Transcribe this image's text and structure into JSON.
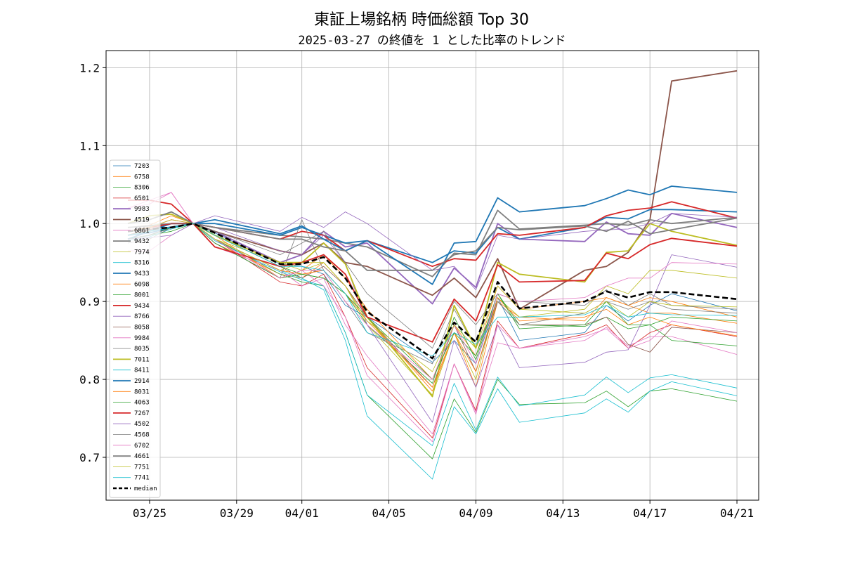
{
  "chart_data": {
    "type": "line",
    "title": "東証上場銘柄 時価総額 Top 30",
    "subtitle": "2025-03-27 の終値を 1 とした比率のトレンド",
    "xlabel": "",
    "ylabel": "",
    "xlim": [
      "2025-03-23",
      "2025-04-22"
    ],
    "ylim": [
      0.645,
      1.222
    ],
    "x_ticks": [
      {
        "date": "2025-03-25",
        "label": "03/25"
      },
      {
        "date": "2025-03-29",
        "label": "03/29"
      },
      {
        "date": "2025-04-01",
        "label": "04/01"
      },
      {
        "date": "2025-04-05",
        "label": "04/05"
      },
      {
        "date": "2025-04-09",
        "label": "04/09"
      },
      {
        "date": "2025-04-13",
        "label": "04/13"
      },
      {
        "date": "2025-04-17",
        "label": "04/17"
      },
      {
        "date": "2025-04-21",
        "label": "04/21"
      }
    ],
    "y_ticks": [
      {
        "value": 0.7,
        "label": "0.7"
      },
      {
        "value": 0.8,
        "label": "0.8"
      },
      {
        "value": 0.9,
        "label": "0.9"
      },
      {
        "value": 1.0,
        "label": "1.0"
      },
      {
        "value": 1.1,
        "label": "1.1"
      },
      {
        "value": 1.2,
        "label": "1.2"
      }
    ],
    "grid": true,
    "legend_position": "left",
    "x": [
      "2025-03-24",
      "2025-03-25",
      "2025-03-26",
      "2025-03-27",
      "2025-03-28",
      "2025-03-31",
      "2025-04-01",
      "2025-04-02",
      "2025-04-03",
      "2025-04-04",
      "2025-04-07",
      "2025-04-08",
      "2025-04-09",
      "2025-04-10",
      "2025-04-11",
      "2025-04-14",
      "2025-04-15",
      "2025-04-16",
      "2025-04-17",
      "2025-04-18",
      "2025-04-21"
    ],
    "series": [
      {
        "name": "7203",
        "color": "#1f77b4",
        "width": 0.8,
        "values": [
          0.985,
          0.992,
          0.996,
          1,
          0.988,
          0.948,
          0.945,
          0.935,
          0.895,
          0.88,
          0.822,
          0.85,
          0.82,
          0.905,
          0.85,
          0.86,
          0.895,
          0.875,
          0.895,
          0.91,
          0.888
        ]
      },
      {
        "name": "6758",
        "color": "#ff7f0e",
        "width": 0.8,
        "values": [
          0.995,
          0.998,
          1.01,
          1,
          0.975,
          0.935,
          0.93,
          0.95,
          0.92,
          0.88,
          0.785,
          0.86,
          0.79,
          0.9,
          0.88,
          0.875,
          0.905,
          0.895,
          0.885,
          0.885,
          0.872
        ]
      },
      {
        "name": "8306",
        "color": "#2ca02c",
        "width": 0.8,
        "values": [
          0.98,
          0.985,
          0.99,
          1,
          0.98,
          0.935,
          0.925,
          0.92,
          0.86,
          0.78,
          0.698,
          0.775,
          0.732,
          0.8,
          0.768,
          0.77,
          0.785,
          0.765,
          0.785,
          0.788,
          0.772
        ]
      },
      {
        "name": "6501",
        "color": "#d62728",
        "width": 0.8,
        "values": [
          0.99,
          0.995,
          1.005,
          1,
          0.98,
          0.925,
          0.92,
          0.935,
          0.88,
          0.815,
          0.725,
          0.82,
          0.76,
          0.875,
          0.84,
          0.858,
          0.87,
          0.84,
          0.86,
          0.87,
          0.855
        ]
      },
      {
        "name": "9983",
        "color": "#9467bd",
        "width": 1.8,
        "values": [
          0.98,
          0.985,
          0.995,
          1,
          0.99,
          0.95,
          0.96,
          0.99,
          0.97,
          0.975,
          0.897,
          0.943,
          0.918,
          1.0,
          0.98,
          0.977,
          1.002,
          0.987,
          0.985,
          1.013,
          0.995
        ]
      },
      {
        "name": "4519",
        "color": "#8c564b",
        "width": 1.8,
        "values": [
          0.985,
          0.992,
          1.0,
          1,
          0.99,
          0.965,
          0.96,
          0.975,
          0.95,
          0.945,
          0.908,
          0.93,
          0.905,
          0.955,
          0.89,
          0.94,
          0.945,
          0.963,
          1.005,
          1.183,
          1.196
        ]
      },
      {
        "name": "6861",
        "color": "#e377c2",
        "width": 0.8,
        "values": [
          0.965,
          0.965,
          0.985,
          1,
          0.97,
          0.94,
          0.92,
          0.93,
          0.87,
          0.83,
          0.73,
          0.82,
          0.758,
          0.847,
          0.84,
          0.85,
          0.867,
          0.843,
          0.855,
          0.855,
          0.832
        ]
      },
      {
        "name": "9432",
        "color": "#7f7f7f",
        "width": 1.8,
        "values": [
          0.995,
          0.997,
          1.0,
          1,
          0.995,
          0.985,
          0.983,
          0.98,
          0.975,
          0.97,
          0.932,
          0.962,
          0.96,
          1.017,
          0.993,
          0.998,
          1.0,
          0.998,
          1.005,
          1.0,
          1.008
        ]
      },
      {
        "name": "7974",
        "color": "#bcbd22",
        "width": 0.8,
        "values": [
          0.985,
          0.99,
          1.0,
          1,
          0.98,
          0.95,
          0.94,
          0.95,
          0.92,
          0.87,
          0.78,
          0.86,
          0.8,
          0.905,
          0.88,
          0.89,
          0.92,
          0.91,
          0.94,
          0.94,
          0.93
        ]
      },
      {
        "name": "8316",
        "color": "#17becf",
        "width": 0.8,
        "values": [
          0.978,
          0.983,
          0.993,
          1,
          0.978,
          0.938,
          0.928,
          0.92,
          0.86,
          0.78,
          0.715,
          0.795,
          0.735,
          0.803,
          0.766,
          0.78,
          0.803,
          0.783,
          0.802,
          0.806,
          0.789
        ]
      },
      {
        "name": "9433",
        "color": "#1f77b4",
        "width": 1.8,
        "values": [
          0.98,
          0.99,
          1.0,
          1,
          1.0,
          0.985,
          0.995,
          0.985,
          0.975,
          0.978,
          0.95,
          0.965,
          0.962,
          0.995,
          0.98,
          0.995,
          1.008,
          1.006,
          1.018,
          1.018,
          1.015
        ]
      },
      {
        "name": "6098",
        "color": "#ff7f0e",
        "width": 0.8,
        "values": [
          0.99,
          0.995,
          1.0,
          1,
          0.985,
          0.93,
          0.94,
          0.96,
          0.93,
          0.89,
          0.8,
          0.87,
          0.83,
          0.92,
          0.89,
          0.9,
          0.905,
          0.895,
          0.905,
          0.9,
          0.88
        ]
      },
      {
        "name": "8001",
        "color": "#2ca02c",
        "width": 0.8,
        "values": [
          0.985,
          0.99,
          0.995,
          1,
          0.985,
          0.945,
          0.935,
          0.93,
          0.91,
          0.87,
          0.795,
          0.88,
          0.825,
          0.91,
          0.87,
          0.868,
          0.88,
          0.865,
          0.87,
          0.85,
          0.843
        ]
      },
      {
        "name": "9434",
        "color": "#d62728",
        "width": 1.8,
        "values": [
          1.03,
          1.03,
          1.025,
          1,
          0.995,
          0.98,
          0.99,
          0.985,
          0.965,
          0.978,
          0.945,
          0.955,
          0.953,
          0.987,
          0.985,
          0.995,
          1.01,
          1.017,
          1.02,
          1.028,
          1.007
        ]
      },
      {
        "name": "8766",
        "color": "#9467bd",
        "width": 0.8,
        "values": [
          0.985,
          0.988,
          0.995,
          1,
          0.995,
          0.965,
          0.96,
          0.985,
          0.95,
          0.87,
          0.745,
          0.85,
          0.79,
          0.87,
          0.815,
          0.822,
          0.835,
          0.838,
          0.895,
          0.96,
          0.944
        ]
      },
      {
        "name": "8058",
        "color": "#8c564b",
        "width": 0.8,
        "values": [
          0.99,
          0.995,
          1.0,
          1,
          0.985,
          0.945,
          0.93,
          0.945,
          0.92,
          0.88,
          0.79,
          0.87,
          0.81,
          0.9,
          0.87,
          0.87,
          0.88,
          0.845,
          0.835,
          0.867,
          0.86
        ]
      },
      {
        "name": "9984",
        "color": "#e377c2",
        "width": 0.8,
        "values": [
          1.02,
          1.03,
          1.04,
          1,
          0.975,
          0.93,
          0.94,
          0.92,
          0.88,
          0.805,
          0.72,
          0.82,
          0.755,
          0.87,
          0.84,
          0.855,
          0.865,
          0.84,
          0.85,
          0.875,
          0.86
        ]
      },
      {
        "name": "8035",
        "color": "#7f7f7f",
        "width": 0.8,
        "values": [
          0.975,
          0.98,
          0.995,
          1,
          0.975,
          0.93,
          1.005,
          0.94,
          0.9,
          0.86,
          0.82,
          0.89,
          0.84,
          0.9,
          0.87,
          0.885,
          0.9,
          0.89,
          0.9,
          0.89,
          0.885
        ]
      },
      {
        "name": "7011",
        "color": "#bcbd22",
        "width": 1.8,
        "values": [
          1.0,
          1.01,
          1.012,
          1,
          0.985,
          0.95,
          0.95,
          0.975,
          0.948,
          0.88,
          0.778,
          0.895,
          0.84,
          0.95,
          0.935,
          0.925,
          0.963,
          0.965,
          1.0,
          0.99,
          0.972
        ]
      },
      {
        "name": "8411",
        "color": "#17becf",
        "width": 0.8,
        "values": [
          0.985,
          0.988,
          0.995,
          1,
          0.98,
          0.94,
          0.93,
          0.915,
          0.85,
          0.753,
          0.672,
          0.765,
          0.73,
          0.788,
          0.745,
          0.757,
          0.775,
          0.758,
          0.785,
          0.797,
          0.779
        ]
      },
      {
        "name": "2914",
        "color": "#1f77b4",
        "width": 1.8,
        "values": [
          0.985,
          0.988,
          0.995,
          1,
          1.005,
          0.987,
          0.997,
          0.98,
          0.965,
          0.978,
          0.922,
          0.975,
          0.977,
          1.033,
          1.015,
          1.023,
          1.032,
          1.043,
          1.037,
          1.048,
          1.04
        ]
      },
      {
        "name": "8031",
        "color": "#ff7f0e",
        "width": 0.8,
        "values": [
          0.99,
          0.995,
          1.0,
          1,
          0.98,
          0.94,
          0.935,
          0.94,
          0.91,
          0.875,
          0.79,
          0.86,
          0.81,
          0.905,
          0.875,
          0.88,
          0.89,
          0.87,
          0.88,
          0.87,
          0.856
        ]
      },
      {
        "name": "4063",
        "color": "#2ca02c",
        "width": 0.8,
        "values": [
          0.98,
          0.985,
          0.995,
          1,
          0.975,
          0.93,
          0.935,
          0.93,
          0.91,
          0.88,
          0.8,
          0.86,
          0.83,
          0.91,
          0.865,
          0.87,
          0.9,
          0.87,
          0.87,
          0.88,
          0.875
        ]
      },
      {
        "name": "7267",
        "color": "#d62728",
        "width": 1.8,
        "values": [
          0.99,
          0.995,
          1.0,
          1,
          0.97,
          0.945,
          0.95,
          0.96,
          0.935,
          0.88,
          0.848,
          0.903,
          0.875,
          0.947,
          0.925,
          0.927,
          0.962,
          0.955,
          0.973,
          0.981,
          0.971
        ]
      },
      {
        "name": "4502",
        "color": "#9467bd",
        "width": 0.8,
        "values": [
          0.98,
          0.982,
          0.985,
          1,
          1.01,
          0.99,
          1.008,
          0.995,
          1.015,
          1.0,
          0.94,
          0.945,
          0.915,
          0.985,
          0.98,
          0.99,
          0.992,
          0.993,
          1.0,
          1.013,
          1.008
        ]
      },
      {
        "name": "4568",
        "color": "#7f7f7f",
        "width": 0.8,
        "values": [
          0.995,
          0.998,
          1.0,
          1,
          0.99,
          0.96,
          0.975,
          0.99,
          0.95,
          0.91,
          0.84,
          0.9,
          0.87,
          0.91,
          0.9,
          0.895,
          0.915,
          0.895,
          0.91,
          0.895,
          0.89
        ]
      },
      {
        "name": "6702",
        "color": "#e377c2",
        "width": 0.8,
        "values": [
          1.02,
          1.025,
          1.04,
          1,
          0.98,
          0.93,
          0.94,
          0.94,
          0.9,
          0.87,
          0.8,
          0.87,
          0.82,
          0.91,
          0.9,
          0.905,
          0.92,
          0.93,
          0.93,
          0.95,
          0.948
        ]
      },
      {
        "name": "4661",
        "color": "#7f7f7f",
        "width": 1.8,
        "values": [
          1.0,
          1.005,
          1.015,
          1,
          0.995,
          0.98,
          0.98,
          0.97,
          0.965,
          0.94,
          0.94,
          0.96,
          0.965,
          0.995,
          0.992,
          0.997,
          0.99,
          1.003,
          0.987,
          0.992,
          1.007
        ]
      },
      {
        "name": "7751",
        "color": "#bcbd22",
        "width": 0.8,
        "values": [
          0.99,
          0.995,
          1.005,
          1,
          0.98,
          0.94,
          0.95,
          0.95,
          0.92,
          0.875,
          0.81,
          0.87,
          0.84,
          0.92,
          0.89,
          0.885,
          0.9,
          0.88,
          0.9,
          0.895,
          0.893
        ]
      },
      {
        "name": "7741",
        "color": "#17becf",
        "width": 0.8,
        "values": [
          0.985,
          0.99,
          0.995,
          1,
          0.985,
          0.945,
          0.945,
          0.94,
          0.91,
          0.86,
          0.83,
          0.86,
          0.845,
          0.88,
          0.88,
          0.883,
          0.895,
          0.88,
          0.885,
          0.883,
          0.882
        ]
      },
      {
        "name": "median",
        "color": "#000000",
        "width": 2.6,
        "dashed": true,
        "values": [
          0.99,
          0.993,
          0.995,
          1,
          0.988,
          0.948,
          0.948,
          0.957,
          0.93,
          0.887,
          0.827,
          0.873,
          0.848,
          0.925,
          0.891,
          0.9,
          0.913,
          0.905,
          0.912,
          0.912,
          0.903
        ]
      }
    ]
  }
}
